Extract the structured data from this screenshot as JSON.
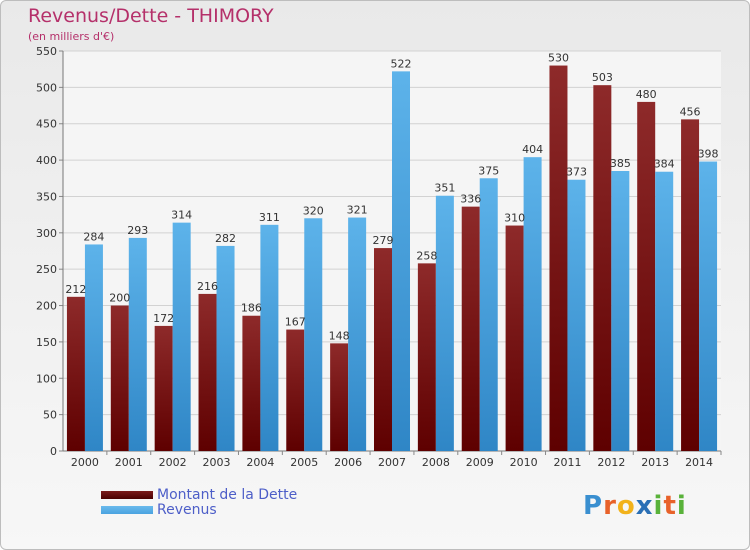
{
  "header": {
    "title": "Revenus/Dette - THIMORY",
    "subtitle": "(en milliers d'€)"
  },
  "colors": {
    "dette": "#7a1a1a",
    "revenus": "#4aa3e0",
    "title": "#b5306a",
    "legend_text": "#4d5ec8"
  },
  "logo": {
    "text": "Proxiti",
    "letters": [
      {
        "char": "P",
        "color": "#3a8fd0"
      },
      {
        "char": "r",
        "color": "#e8622a"
      },
      {
        "char": "o",
        "color": "#f2b21b"
      },
      {
        "char": "x",
        "color": "#2a6fb5"
      },
      {
        "char": "i",
        "color": "#59b23a"
      },
      {
        "char": "t",
        "color": "#e8622a"
      },
      {
        "char": "i",
        "color": "#59b23a"
      }
    ]
  },
  "chart_data": {
    "type": "bar",
    "title": "Revenus/Dette - THIMORY",
    "subtitle": "(en milliers d'€)",
    "categories": [
      "2000",
      "2001",
      "2002",
      "2003",
      "2004",
      "2005",
      "2006",
      "2007",
      "2008",
      "2009",
      "2010",
      "2011",
      "2012",
      "2013",
      "2014"
    ],
    "series": [
      {
        "name": "Montant de la Dette",
        "color": "#7a1a1a",
        "values": [
          212,
          200,
          172,
          216,
          186,
          167,
          148,
          279,
          258,
          336,
          310,
          530,
          503,
          480,
          456
        ]
      },
      {
        "name": "Revenus",
        "color": "#4aa3e0",
        "values": [
          284,
          293,
          314,
          282,
          311,
          320,
          321,
          522,
          351,
          375,
          404,
          373,
          385,
          384,
          398
        ]
      }
    ],
    "ylim": [
      0,
      550
    ],
    "yticks": [
      0,
      50,
      100,
      150,
      200,
      250,
      300,
      350,
      400,
      450,
      500,
      550
    ],
    "grid": true,
    "legend": "bottom-left"
  }
}
